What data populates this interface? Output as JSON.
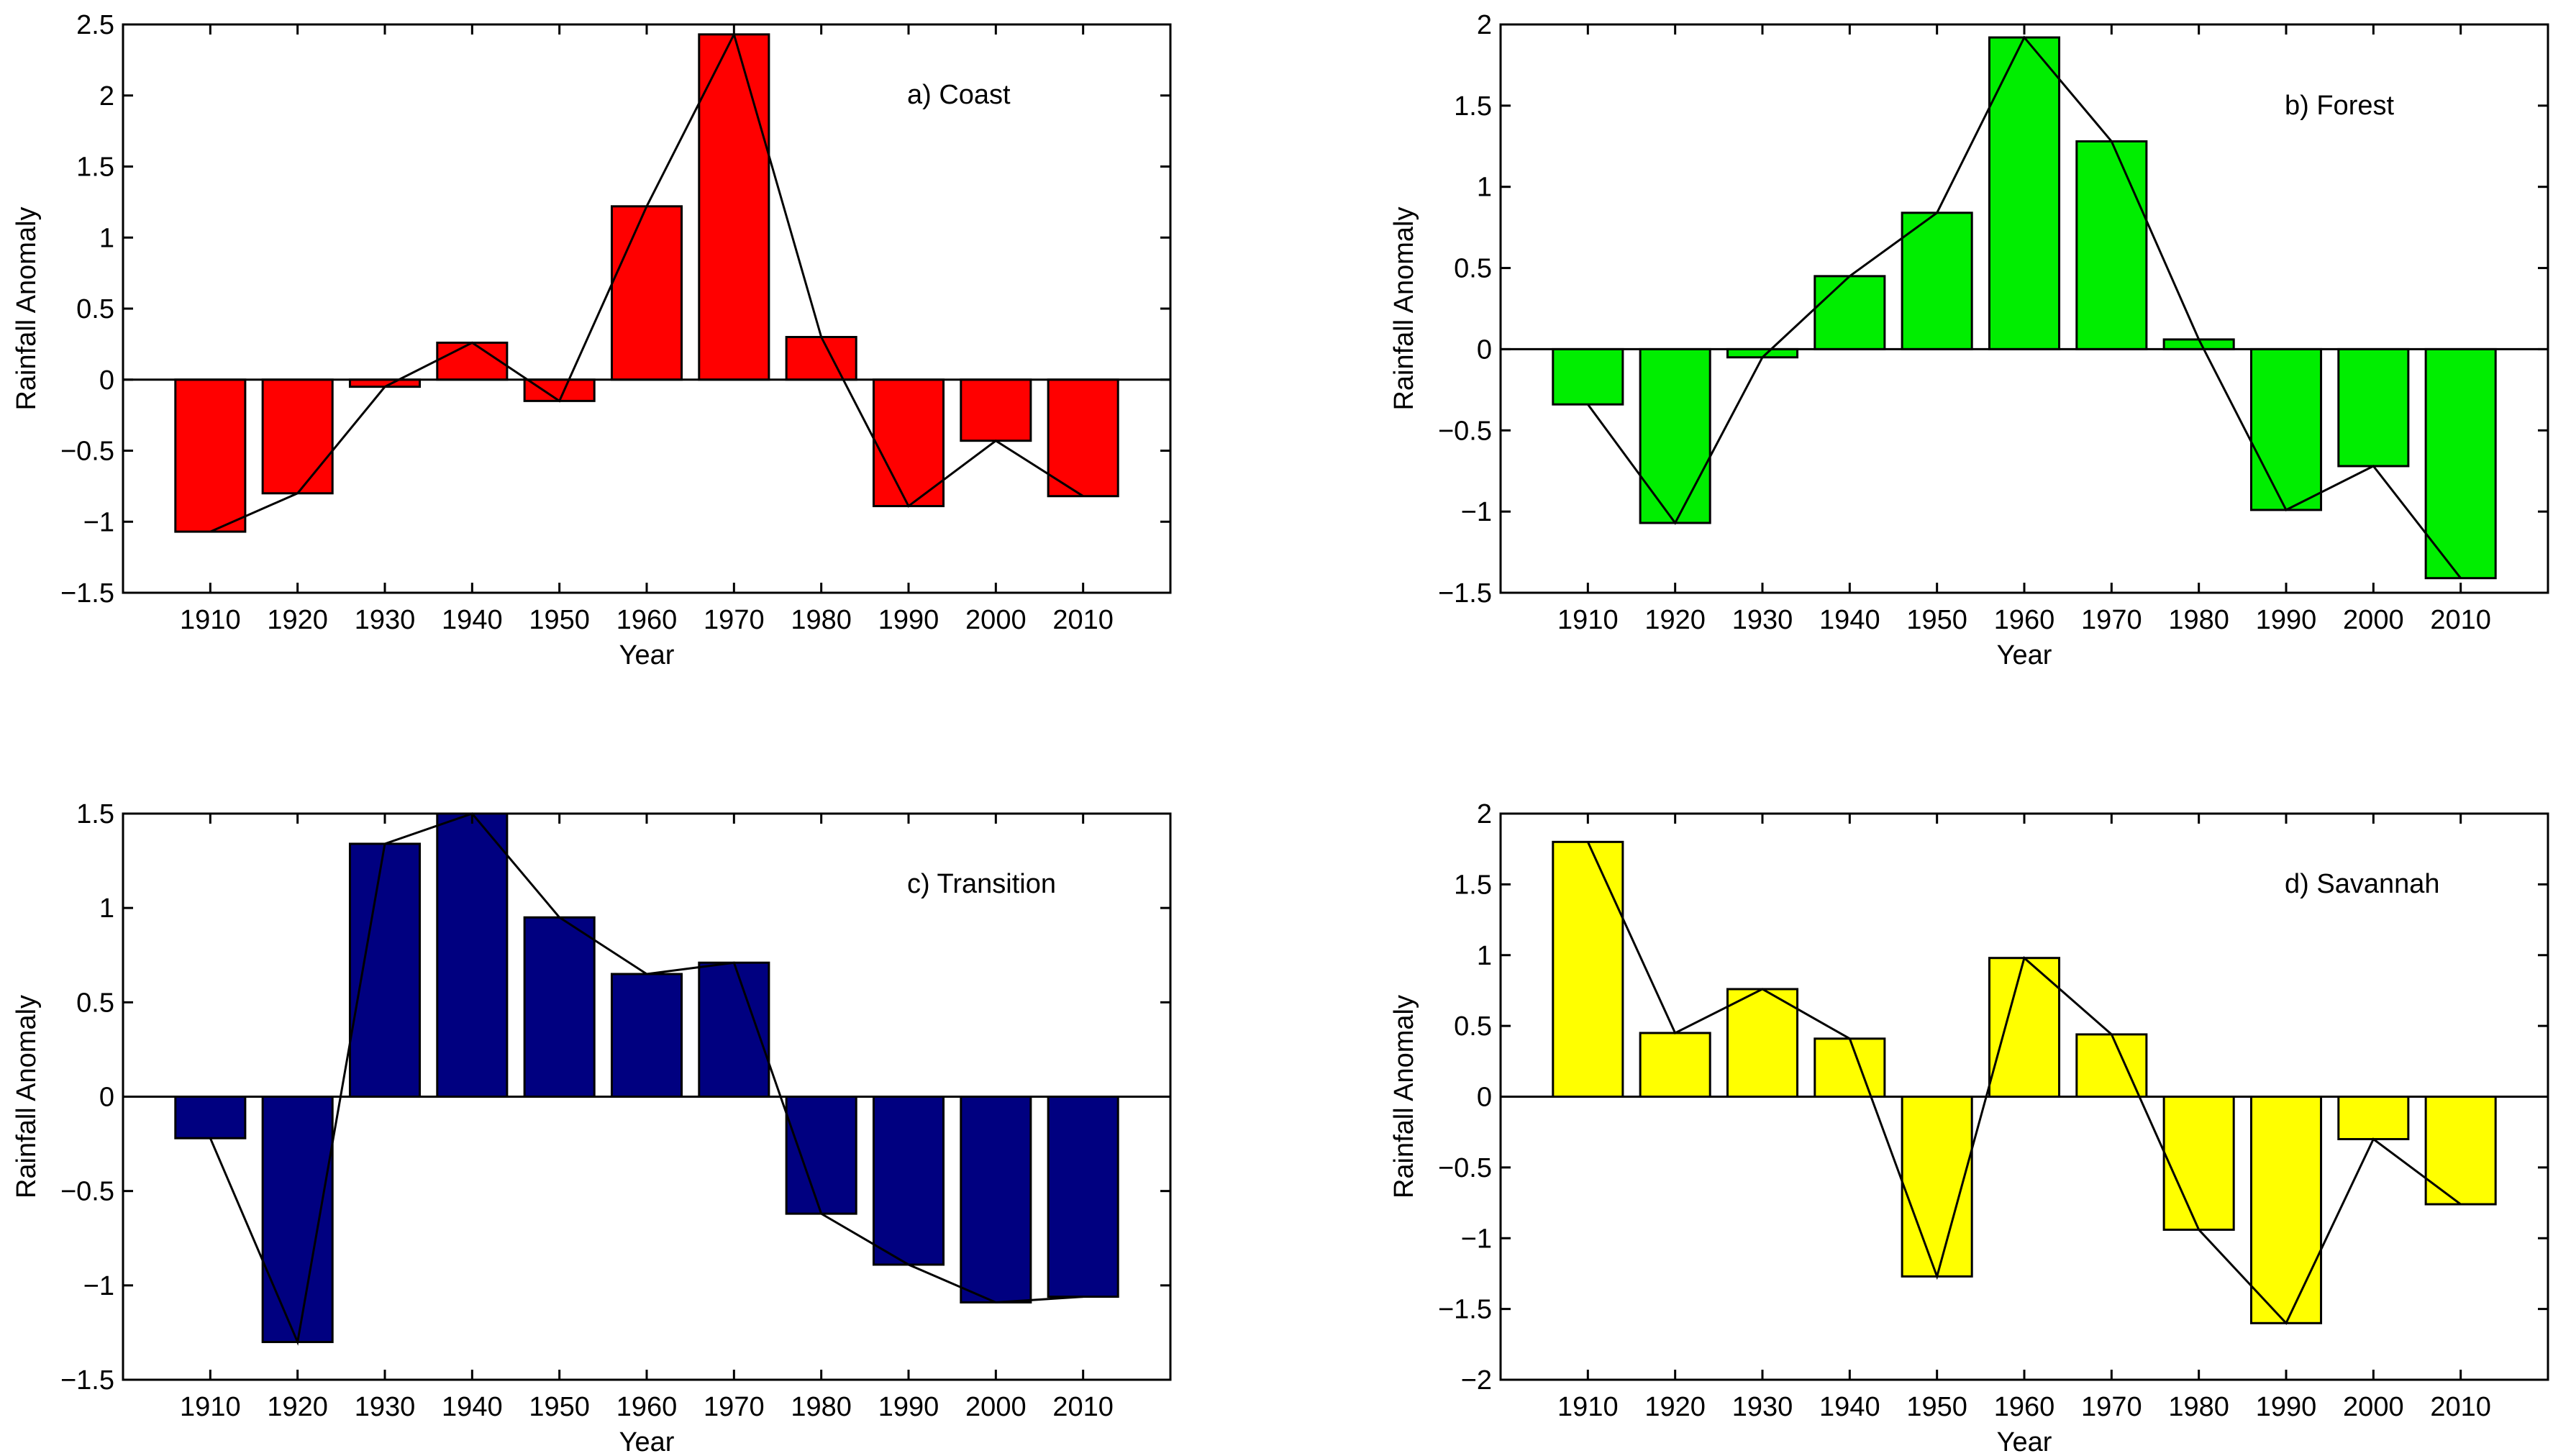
{
  "chart_data": [
    {
      "type": "bar",
      "title": "a) Coast",
      "xlabel": "Year",
      "ylabel": "Rainfall Anomaly",
      "color": "#ff0000",
      "categories": [
        1910,
        1920,
        1930,
        1940,
        1950,
        1960,
        1970,
        1980,
        1990,
        2000,
        2010
      ],
      "values": [
        -1.07,
        -0.8,
        -0.05,
        0.26,
        -0.15,
        1.22,
        2.43,
        0.3,
        -0.89,
        -0.43,
        -0.82
      ],
      "overlay_line": true,
      "xlim": [
        1900,
        2020
      ],
      "ylim": [
        -1.5,
        2.5
      ],
      "yticks": [
        -1.5,
        -1,
        -0.5,
        0,
        0.5,
        1,
        1.5,
        2,
        2.5
      ],
      "grid": false
    },
    {
      "type": "bar",
      "title": "b) Forest",
      "xlabel": "Year",
      "ylabel": "Rainfall Anomaly",
      "color": "#00ee00",
      "categories": [
        1910,
        1920,
        1930,
        1940,
        1950,
        1960,
        1970,
        1980,
        1990,
        2000,
        2010
      ],
      "values": [
        -0.34,
        -1.07,
        -0.05,
        0.45,
        0.84,
        1.92,
        1.28,
        0.06,
        -0.99,
        -0.72,
        -1.41
      ],
      "overlay_line": true,
      "xlim": [
        1900,
        2020
      ],
      "ylim": [
        -1.5,
        2
      ],
      "yticks": [
        -1.5,
        -1,
        -0.5,
        0,
        0.5,
        1,
        1.5,
        2
      ],
      "grid": false
    },
    {
      "type": "bar",
      "title": "c) Transition",
      "xlabel": "Year",
      "ylabel": "Rainfall Anomaly",
      "color": "#000080",
      "categories": [
        1910,
        1920,
        1930,
        1940,
        1950,
        1960,
        1970,
        1980,
        1990,
        2000,
        2010
      ],
      "values": [
        -0.22,
        -1.3,
        1.34,
        1.5,
        0.95,
        0.65,
        0.71,
        -0.62,
        -0.89,
        -1.09,
        -1.06
      ],
      "overlay_line": true,
      "xlim": [
        1900,
        2020
      ],
      "ylim": [
        -1.5,
        1.5
      ],
      "yticks": [
        -1.5,
        -1,
        -0.5,
        0,
        0.5,
        1,
        1.5
      ],
      "grid": false
    },
    {
      "type": "bar",
      "title": "d) Savannah",
      "xlabel": "Year",
      "ylabel": "Rainfall Anomaly",
      "color": "#ffff00",
      "categories": [
        1910,
        1920,
        1930,
        1940,
        1950,
        1960,
        1970,
        1980,
        1990,
        2000,
        2010
      ],
      "values": [
        1.8,
        0.45,
        0.76,
        0.41,
        -1.27,
        0.98,
        0.44,
        -0.94,
        -1.6,
        -0.3,
        -0.76
      ],
      "overlay_line": true,
      "xlim": [
        1900,
        2020
      ],
      "ylim": [
        -2,
        2
      ],
      "yticks": [
        -2,
        -1.5,
        -1,
        -0.5,
        0,
        0.5,
        1,
        1.5,
        2
      ],
      "grid": false
    }
  ]
}
